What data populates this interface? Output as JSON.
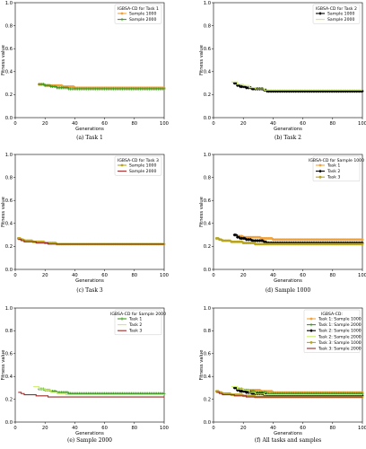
{
  "colors": {
    "sample1000_task1": "#f2a23a",
    "sample2000_task1": "#3a9a1a",
    "sample1000_task2": "#000000",
    "sample2000_task2": "#ccee66",
    "sample1000_task3": "#b8a51c",
    "sample2000_task3": "#9e2a2a"
  },
  "chart_data": [
    {
      "id": "a",
      "type": "line",
      "caption": "(a) Task 1",
      "legend_title": "IGBSA-CD for Task 1",
      "legend_position": "top-right",
      "xlabel": "Generations",
      "ylabel": "Fitness value",
      "xlim": [
        0,
        100
      ],
      "ylim": [
        0,
        1.0
      ],
      "xticks": [
        "0",
        "20",
        "40",
        "60",
        "80",
        "100"
      ],
      "yticks": [
        "0.0",
        "0.2",
        "0.4",
        "0.6",
        "0.8",
        "1.0"
      ],
      "series": [
        {
          "name": "Sample 1000",
          "color": "#f2a23a",
          "marker": "circle",
          "x": [
            16,
            20,
            24,
            28,
            32,
            36,
            40,
            100
          ],
          "y": [
            0.29,
            0.28,
            0.28,
            0.28,
            0.27,
            0.27,
            0.26,
            0.26
          ]
        },
        {
          "name": "Sample 2000",
          "color": "#3a9a1a",
          "marker": "plus",
          "x": [
            16,
            20,
            24,
            28,
            32,
            36,
            100
          ],
          "y": [
            0.29,
            0.28,
            0.27,
            0.26,
            0.26,
            0.25,
            0.25
          ]
        }
      ]
    },
    {
      "id": "b",
      "type": "line",
      "caption": "(b) Task 2",
      "legend_title": "IGBSA-CD for Task 2",
      "legend_position": "top-right",
      "xlabel": "Generations",
      "ylabel": "Fitness value",
      "xlim": [
        0,
        100
      ],
      "ylim": [
        0,
        1.0
      ],
      "xticks": [
        "0",
        "20",
        "40",
        "60",
        "80",
        "100"
      ],
      "yticks": [
        "0.0",
        "0.2",
        "0.4",
        "0.6",
        "0.8",
        "1.0"
      ],
      "series": [
        {
          "name": "Sample 1000",
          "color": "#000000",
          "marker": "diamond",
          "x": [
            14,
            16,
            18,
            22,
            26,
            30,
            34,
            36,
            100
          ],
          "y": [
            0.3,
            0.28,
            0.27,
            0.26,
            0.25,
            0.25,
            0.24,
            0.23,
            0.23
          ]
        },
        {
          "name": "Sample 2000",
          "color": "#ccee66",
          "marker": "none",
          "x": [
            12,
            16,
            20,
            24,
            28,
            34,
            100
          ],
          "y": [
            0.31,
            0.29,
            0.28,
            0.26,
            0.25,
            0.24,
            0.24
          ]
        }
      ]
    },
    {
      "id": "c",
      "type": "line",
      "caption": "(c) Task 3",
      "legend_title": "IGBSA-CD for Task 3",
      "legend_position": "top-right",
      "xlabel": "Generations",
      "ylabel": "Fitness value",
      "xlim": [
        0,
        100
      ],
      "ylim": [
        0,
        1.0
      ],
      "xticks": [
        "0",
        "20",
        "40",
        "60",
        "80",
        "100"
      ],
      "yticks": [
        "0.0",
        "0.2",
        "0.4",
        "0.6",
        "0.8",
        "1.0"
      ],
      "series": [
        {
          "name": "Sample 1000",
          "color": "#b8a51c",
          "marker": "circle",
          "x": [
            2,
            4,
            6,
            10,
            12,
            16,
            20,
            24,
            28,
            100
          ],
          "y": [
            0.27,
            0.26,
            0.25,
            0.25,
            0.24,
            0.24,
            0.23,
            0.23,
            0.22,
            0.22
          ]
        },
        {
          "name": "Sample 2000",
          "color": "#9e2a2a",
          "marker": "none",
          "x": [
            2,
            4,
            6,
            10,
            14,
            18,
            22,
            100
          ],
          "y": [
            0.26,
            0.25,
            0.24,
            0.24,
            0.23,
            0.23,
            0.22,
            0.22
          ]
        }
      ]
    },
    {
      "id": "d",
      "type": "line",
      "caption": "(d) Sample 1000",
      "legend_title": "IGBSA-CD for Sample 1000",
      "legend_position": "top-right",
      "xlabel": "Generations",
      "ylabel": "Fitness value",
      "xlim": [
        0,
        100
      ],
      "ylim": [
        0,
        1.0
      ],
      "xticks": [
        "0",
        "20",
        "40",
        "60",
        "80",
        "100"
      ],
      "yticks": [
        "0.0",
        "0.2",
        "0.4",
        "0.6",
        "0.8",
        "1.0"
      ],
      "series": [
        {
          "name": "Task 1",
          "color": "#f2a23a",
          "marker": "circle",
          "x": [
            16,
            20,
            24,
            28,
            32,
            36,
            40,
            100
          ],
          "y": [
            0.29,
            0.28,
            0.28,
            0.28,
            0.27,
            0.27,
            0.26,
            0.26
          ]
        },
        {
          "name": "Task 2",
          "color": "#000000",
          "marker": "diamond",
          "x": [
            14,
            16,
            18,
            22,
            26,
            30,
            34,
            36,
            100
          ],
          "y": [
            0.3,
            0.28,
            0.27,
            0.26,
            0.25,
            0.25,
            0.24,
            0.23,
            0.23
          ]
        },
        {
          "name": "Task 3",
          "color": "#b8a51c",
          "marker": "circle",
          "x": [
            2,
            4,
            6,
            10,
            12,
            16,
            20,
            24,
            28,
            100
          ],
          "y": [
            0.27,
            0.26,
            0.25,
            0.25,
            0.24,
            0.24,
            0.23,
            0.23,
            0.22,
            0.22
          ]
        }
      ]
    },
    {
      "id": "e",
      "type": "line",
      "caption": "(e) Sample 2000",
      "legend_title": "IGBSA-CD for Sample 2000",
      "legend_position": "top-right",
      "xlabel": "Generations",
      "ylabel": "Fitness value",
      "xlim": [
        0,
        100
      ],
      "ylim": [
        0,
        1.0
      ],
      "xticks": [
        "0",
        "20",
        "40",
        "60",
        "80",
        "100"
      ],
      "yticks": [
        "0.0",
        "0.2",
        "0.4",
        "0.6",
        "0.8",
        "1.0"
      ],
      "series": [
        {
          "name": "Task 1",
          "color": "#3a9a1a",
          "marker": "plus",
          "x": [
            16,
            20,
            24,
            28,
            32,
            36,
            100
          ],
          "y": [
            0.29,
            0.28,
            0.27,
            0.26,
            0.26,
            0.25,
            0.25
          ]
        },
        {
          "name": "Task 2",
          "color": "#ccee66",
          "marker": "none",
          "x": [
            12,
            16,
            20,
            24,
            28,
            34,
            100
          ],
          "y": [
            0.31,
            0.29,
            0.28,
            0.26,
            0.25,
            0.24,
            0.24
          ]
        },
        {
          "name": "Task 3",
          "color": "#9e2a2a",
          "marker": "none",
          "x": [
            2,
            4,
            6,
            10,
            14,
            18,
            22,
            100
          ],
          "y": [
            0.26,
            0.25,
            0.24,
            0.24,
            0.23,
            0.23,
            0.22,
            0.22
          ]
        }
      ]
    },
    {
      "id": "f",
      "type": "line",
      "caption": "(f) All tasks and samples",
      "legend_title": "IGBSA-CD:",
      "legend_position": "top-right",
      "xlabel": "Generations",
      "ylabel": "Fitness value",
      "xlim": [
        0,
        100
      ],
      "ylim": [
        0,
        1.0
      ],
      "xticks": [
        "0",
        "20",
        "40",
        "60",
        "80",
        "100"
      ],
      "yticks": [
        "0.0",
        "0.2",
        "0.4",
        "0.6",
        "0.8",
        "1.0"
      ],
      "series": [
        {
          "name": "Task 1: Sample 1000",
          "color": "#f2a23a",
          "marker": "circle",
          "x": [
            16,
            20,
            24,
            28,
            32,
            36,
            40,
            100
          ],
          "y": [
            0.29,
            0.28,
            0.28,
            0.28,
            0.27,
            0.27,
            0.26,
            0.26
          ]
        },
        {
          "name": "Task 1: Sample 2000",
          "color": "#3a9a1a",
          "marker": "plus",
          "x": [
            16,
            20,
            24,
            28,
            32,
            36,
            100
          ],
          "y": [
            0.29,
            0.28,
            0.27,
            0.26,
            0.26,
            0.25,
            0.25
          ]
        },
        {
          "name": "Task 2: Sample 1000",
          "color": "#000000",
          "marker": "diamond",
          "x": [
            14,
            16,
            18,
            22,
            26,
            30,
            34,
            36,
            100
          ],
          "y": [
            0.3,
            0.28,
            0.27,
            0.26,
            0.25,
            0.25,
            0.24,
            0.23,
            0.23
          ]
        },
        {
          "name": "Task 2: Sample 2000",
          "color": "#ccee66",
          "marker": "none",
          "x": [
            12,
            16,
            20,
            24,
            28,
            34,
            100
          ],
          "y": [
            0.31,
            0.29,
            0.28,
            0.26,
            0.25,
            0.24,
            0.24
          ]
        },
        {
          "name": "Task 3: Sample 1000",
          "color": "#b8a51c",
          "marker": "circle",
          "x": [
            2,
            4,
            6,
            10,
            12,
            16,
            20,
            24,
            28,
            100
          ],
          "y": [
            0.27,
            0.26,
            0.25,
            0.25,
            0.24,
            0.24,
            0.23,
            0.23,
            0.22,
            0.22
          ]
        },
        {
          "name": "Task 3: Sample 2000",
          "color": "#9e2a2a",
          "marker": "none",
          "x": [
            2,
            4,
            6,
            10,
            14,
            18,
            22,
            100
          ],
          "y": [
            0.26,
            0.25,
            0.24,
            0.24,
            0.23,
            0.23,
            0.22,
            0.22
          ]
        }
      ]
    }
  ]
}
